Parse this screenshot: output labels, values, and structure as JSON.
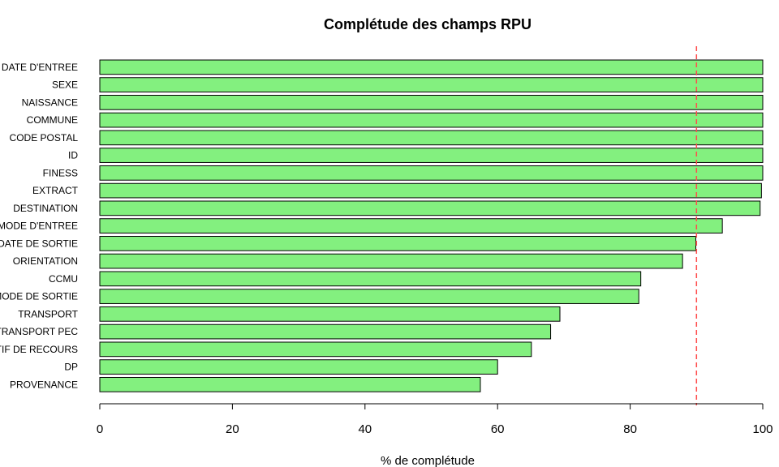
{
  "chart_data": {
    "type": "bar",
    "orientation": "horizontal",
    "title": "Complétude des champs RPU",
    "xlabel": "% de complétude",
    "ylabel": "",
    "xlim": [
      0,
      100
    ],
    "xticks": [
      "0",
      "20",
      "40",
      "60",
      "80",
      "100"
    ],
    "reference_line": 90,
    "categories": [
      "DATE D'ENTREE",
      "SEXE",
      "NAISSANCE",
      "COMMUNE",
      "CODE POSTAL",
      "ID",
      "FINESS",
      "EXTRACT",
      "DESTINATION",
      "MODE D'ENTREE",
      "DATE DE SORTIE",
      "ORIENTATION",
      "CCMU",
      "MODE DE SORTIE",
      "TRANSPORT",
      "TRANSPORT PEC",
      "MOTIF DE RECOURS",
      "DP",
      "PROVENANCE"
    ],
    "values": [
      100,
      100,
      100,
      100,
      100,
      100,
      100,
      99.8,
      99.6,
      93.9,
      89.9,
      87.9,
      81.6,
      81.3,
      69.4,
      68.0,
      65.1,
      60.0,
      57.4
    ],
    "grid": false,
    "legend": "none",
    "colors": {
      "bar_fill": "#83f07f",
      "bar_stroke": "#000000",
      "reference_line": "#ff4d4d"
    }
  }
}
